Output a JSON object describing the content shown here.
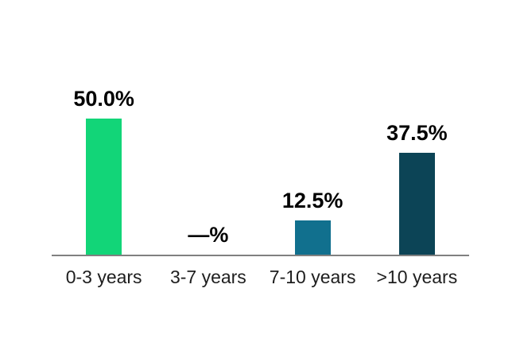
{
  "page": {
    "background_color": "#ffffff"
  },
  "chart_data": {
    "type": "bar",
    "title": "",
    "xlabel": "",
    "ylabel": "",
    "unit": "%",
    "categories": [
      "0-3 years",
      "3-7 years",
      "7-10 years",
      ">10 years"
    ],
    "values": [
      50.0,
      null,
      12.5,
      37.5
    ],
    "value_labels": [
      "50.0%",
      "—%",
      "12.5%",
      "37.5%"
    ],
    "bar_colors": [
      "#12d578",
      null,
      "#11708e",
      "#0c4456"
    ],
    "null_display": "—%",
    "ylim": [
      0,
      50
    ],
    "y_axis_visible": false,
    "grid": false,
    "legend": false,
    "data_label_position": "above-bars",
    "axis_line_color": "#808080",
    "value_label_color": "#000000",
    "category_label_color": "#1e1e1e"
  }
}
